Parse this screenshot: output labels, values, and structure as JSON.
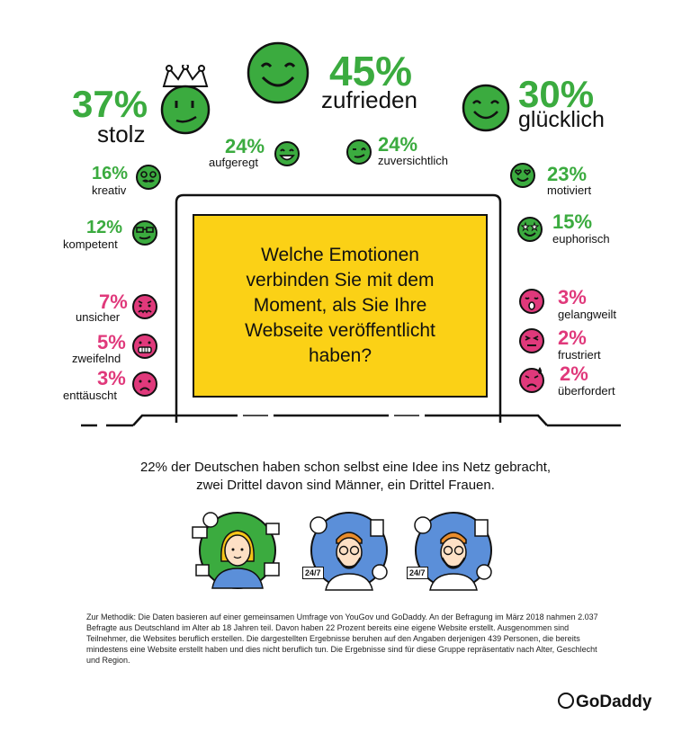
{
  "emotions": {
    "proud": {
      "pct": "37%",
      "label": "stolz"
    },
    "satisfied": {
      "pct": "45%",
      "label": "zufrieden"
    },
    "happy": {
      "pct": "30%",
      "label": "glücklich"
    },
    "excited": {
      "pct": "24%",
      "label": "aufgeregt"
    },
    "confident": {
      "pct": "24%",
      "label": "zuversichtlich"
    },
    "creative": {
      "pct": "16%",
      "label": "kreativ"
    },
    "motivated": {
      "pct": "23%",
      "label": "motiviert"
    },
    "competent": {
      "pct": "12%",
      "label": "kompetent"
    },
    "euphoric": {
      "pct": "15%",
      "label": "euphorisch"
    },
    "insecure": {
      "pct": "7%",
      "label": "unsicher"
    },
    "bored": {
      "pct": "3%",
      "label": "gelangweilt"
    },
    "doubting": {
      "pct": "5%",
      "label": "zweifelnd"
    },
    "frustrated": {
      "pct": "2%",
      "label": "frustriert"
    },
    "disappointed": {
      "pct": "3%",
      "label": "enttäuscht"
    },
    "overwhelmed": {
      "pct": "2%",
      "label": "überfordert"
    }
  },
  "question": "Welche Emotionen verbinden Sie mit dem Moment, als Sie Ihre Webseite veröffentlicht haben?",
  "summary": {
    "line1": "22% der Deutschen haben schon selbst eine Idee ins Netz gebracht,",
    "line2": "zwei Drittel davon sind Männer, ein Drittel Frauen."
  },
  "badges": {
    "hours_1": "24/7",
    "hours_2": "24/7"
  },
  "methodology": "Zur Methodik: Die Daten basieren auf einer gemeinsamen Umfrage von YouGov und GoDaddy. An der Befragung im März 2018 nahmen 2.037 Befragte aus Deutschland im Alter ab 18 Jahren teil. Davon haben 22 Prozent bereits eine eigene Website erstellt. Ausgenommen sind Teilnehmer, die Websites beruflich erstellen. Die dargestellten Ergebnisse beruhen auf den Angaben derjenigen 439 Personen, die bereits mindestens eine Website erstellt haben und dies nicht beruflich tun. Die Ergebnisse sind für diese Gruppe repräsentativ nach Alter, Geschlecht und Region.",
  "logo": "GoDaddy",
  "colors": {
    "positive": "#3bab3f",
    "negative": "#e0397b",
    "question_bg": "#fbd116",
    "icon_blue": "#5b8fd9"
  }
}
